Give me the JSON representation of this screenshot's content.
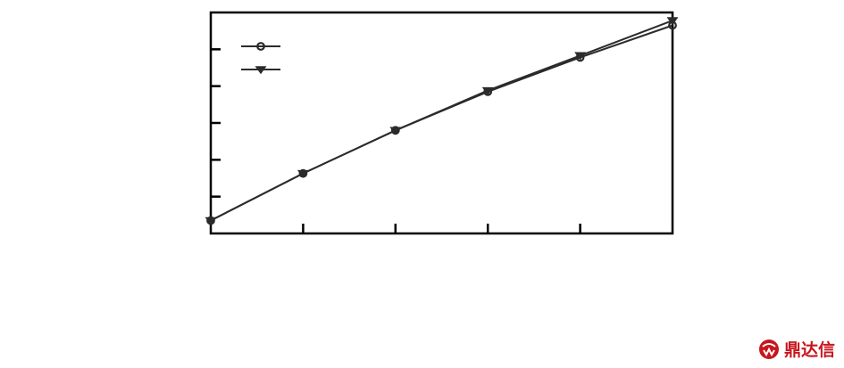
{
  "chart_data": {
    "type": "line",
    "title": "",
    "xlabel": "",
    "ylabel": "",
    "x": [
      0,
      1,
      2,
      3,
      4,
      5
    ],
    "xlim": [
      0,
      5
    ],
    "ylim": [
      0,
      6
    ],
    "xticks": [
      1,
      2,
      3,
      4
    ],
    "yticks": [
      1,
      2,
      3,
      4,
      5
    ],
    "grid": false,
    "legend": "top-left",
    "series": [
      {
        "marker": "circle",
        "color": "#2b2b2b",
        "values": [
          0.35,
          1.63,
          2.8,
          3.85,
          4.78,
          5.65
        ]
      },
      {
        "marker": "triangle-down",
        "color": "#2b2b2b",
        "values": [
          0.35,
          1.63,
          2.8,
          3.88,
          4.83,
          5.78
        ]
      }
    ]
  },
  "watermark": {
    "text": "鼎达信",
    "color": "#c8161d"
  }
}
